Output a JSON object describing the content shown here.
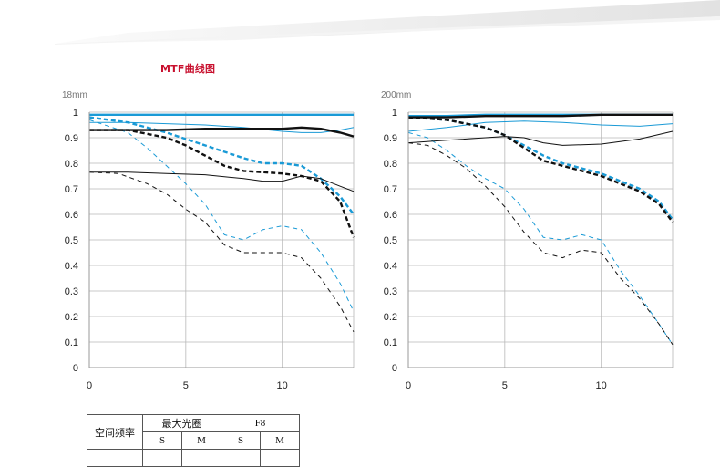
{
  "heading": "MTF曲线图",
  "colors": {
    "heading": "#c8102e",
    "blue": "#1a9ad6",
    "black": "#111111",
    "grid": "#b8b8b8"
  },
  "table": {
    "row_header": "空间频率",
    "group_max": "最大光圈",
    "group_f8": "F8",
    "s1": "S",
    "m1": "M",
    "s2": "S",
    "m2": "M"
  },
  "chart_data": [
    {
      "type": "line",
      "title": "18mm",
      "xlim": [
        0,
        13.7
      ],
      "ylim": [
        0,
        1
      ],
      "x_ticks": [
        0,
        5,
        10
      ],
      "y_ticks": [
        0,
        0.1,
        0.2,
        0.3,
        0.4,
        0.5,
        0.6,
        0.7,
        0.8,
        0.9,
        1
      ],
      "y_tick_labels": [
        "0",
        "0.1",
        "0.2",
        "0.3",
        "0.4",
        "0.5",
        "0.6",
        "0.7",
        "0.8",
        "0.9",
        "1"
      ],
      "x_tick_labels": [
        "0",
        "5",
        "10"
      ],
      "grid": true,
      "series": [
        {
          "name": "max-aperture-10lp-sagittal",
          "color": "#1a9ad6",
          "style": "solid",
          "weight": "bold",
          "x": [
            0,
            2,
            4,
            6,
            8,
            10,
            12,
            13.7
          ],
          "y": [
            0.99,
            0.99,
            0.99,
            0.99,
            0.99,
            0.99,
            0.99,
            0.99
          ]
        },
        {
          "name": "max-aperture-10lp-meridional",
          "color": "#1a9ad6",
          "style": "dashed",
          "weight": "bold",
          "x": [
            0,
            2,
            4,
            6,
            8,
            9,
            10,
            11,
            12,
            13,
            13.7
          ],
          "y": [
            0.98,
            0.96,
            0.92,
            0.87,
            0.82,
            0.8,
            0.8,
            0.79,
            0.74,
            0.67,
            0.6
          ]
        },
        {
          "name": "max-aperture-30lp-sagittal",
          "color": "#1a9ad6",
          "style": "solid",
          "weight": "thin",
          "x": [
            0,
            2,
            4,
            6,
            8,
            10,
            11,
            12,
            13,
            13.7
          ],
          "y": [
            0.96,
            0.96,
            0.955,
            0.95,
            0.94,
            0.925,
            0.92,
            0.92,
            0.93,
            0.94
          ]
        },
        {
          "name": "max-aperture-30lp-meridional",
          "color": "#1a9ad6",
          "style": "dashed",
          "weight": "thin",
          "x": [
            0,
            2,
            3,
            4,
            5,
            6,
            7,
            8,
            9,
            10,
            11,
            12,
            13,
            13.7
          ],
          "y": [
            0.97,
            0.92,
            0.86,
            0.79,
            0.72,
            0.64,
            0.52,
            0.5,
            0.54,
            0.555,
            0.54,
            0.45,
            0.33,
            0.22
          ]
        },
        {
          "name": "f8-10lp-sagittal",
          "color": "#111111",
          "style": "solid",
          "weight": "bold",
          "x": [
            0,
            2,
            4,
            6,
            8,
            10,
            11,
            12,
            13,
            13.7
          ],
          "y": [
            0.93,
            0.93,
            0.93,
            0.935,
            0.935,
            0.935,
            0.94,
            0.935,
            0.92,
            0.905
          ]
        },
        {
          "name": "f8-10lp-meridional",
          "color": "#111111",
          "style": "dashed",
          "weight": "bold",
          "x": [
            0,
            2,
            4,
            5,
            6,
            7,
            8,
            10,
            11,
            12,
            13,
            13.7
          ],
          "y": [
            0.93,
            0.93,
            0.9,
            0.87,
            0.83,
            0.79,
            0.77,
            0.76,
            0.75,
            0.73,
            0.65,
            0.51
          ]
        },
        {
          "name": "f8-30lp-sagittal",
          "color": "#111111",
          "style": "solid",
          "weight": "thin",
          "x": [
            0,
            2,
            4,
            6,
            8,
            9,
            10,
            11,
            12,
            13,
            13.7
          ],
          "y": [
            0.765,
            0.765,
            0.76,
            0.755,
            0.74,
            0.73,
            0.73,
            0.75,
            0.74,
            0.71,
            0.69
          ]
        },
        {
          "name": "f8-30lp-meridional",
          "color": "#111111",
          "style": "dashed",
          "weight": "thin",
          "x": [
            0,
            1.5,
            3,
            4,
            5,
            6,
            7,
            8,
            9,
            10,
            11,
            12,
            13,
            13.7
          ],
          "y": [
            0.765,
            0.76,
            0.72,
            0.68,
            0.62,
            0.57,
            0.48,
            0.45,
            0.45,
            0.45,
            0.43,
            0.35,
            0.24,
            0.14
          ]
        }
      ]
    },
    {
      "type": "line",
      "title": "200mm",
      "xlim": [
        0,
        13.7
      ],
      "ylim": [
        0,
        1
      ],
      "x_ticks": [
        0,
        5,
        10
      ],
      "y_ticks": [
        0,
        0.1,
        0.2,
        0.3,
        0.4,
        0.5,
        0.6,
        0.7,
        0.8,
        0.9,
        1
      ],
      "y_tick_labels": [
        "0",
        "0.1",
        "0.2",
        "0.3",
        "0.4",
        "0.5",
        "0.6",
        "0.7",
        "0.8",
        "0.9",
        "1"
      ],
      "x_tick_labels": [
        "0",
        "5",
        "10"
      ],
      "grid": true,
      "series": [
        {
          "name": "max-aperture-10lp-sagittal",
          "color": "#1a9ad6",
          "style": "solid",
          "weight": "bold",
          "x": [
            0,
            2,
            4,
            6,
            8,
            10,
            12,
            13.7
          ],
          "y": [
            0.985,
            0.985,
            0.99,
            0.99,
            0.99,
            0.99,
            0.99,
            0.99
          ]
        },
        {
          "name": "max-aperture-10lp-meridional",
          "color": "#1a9ad6",
          "style": "dashed",
          "weight": "bold",
          "x": [
            0,
            2,
            4,
            5,
            6,
            7,
            8,
            9,
            10,
            11,
            12,
            13,
            13.7
          ],
          "y": [
            0.98,
            0.97,
            0.94,
            0.91,
            0.87,
            0.83,
            0.8,
            0.78,
            0.76,
            0.73,
            0.7,
            0.65,
            0.58
          ]
        },
        {
          "name": "max-aperture-30lp-sagittal",
          "color": "#1a9ad6",
          "style": "solid",
          "weight": "thin",
          "x": [
            0,
            2,
            4,
            6,
            8,
            10,
            12,
            13.7
          ],
          "y": [
            0.925,
            0.94,
            0.96,
            0.965,
            0.96,
            0.95,
            0.945,
            0.955
          ]
        },
        {
          "name": "max-aperture-30lp-meridional",
          "color": "#1a9ad6",
          "style": "dashed",
          "weight": "thin",
          "x": [
            0,
            1,
            2,
            3,
            4,
            5,
            6,
            7,
            8,
            9,
            10,
            11,
            12,
            13,
            13.7
          ],
          "y": [
            0.92,
            0.9,
            0.85,
            0.79,
            0.74,
            0.7,
            0.62,
            0.51,
            0.5,
            0.52,
            0.5,
            0.38,
            0.28,
            0.17,
            0.09
          ]
        },
        {
          "name": "f8-10lp-sagittal",
          "color": "#111111",
          "style": "solid",
          "weight": "bold",
          "x": [
            0,
            2,
            4,
            6,
            8,
            10,
            12,
            13.7
          ],
          "y": [
            0.98,
            0.98,
            0.985,
            0.985,
            0.985,
            0.99,
            0.99,
            0.99
          ]
        },
        {
          "name": "f8-10lp-meridional",
          "color": "#111111",
          "style": "dashed",
          "weight": "bold",
          "x": [
            0,
            2,
            4,
            5,
            6,
            7,
            8,
            9,
            10,
            11,
            12,
            13,
            13.7
          ],
          "y": [
            0.98,
            0.97,
            0.94,
            0.91,
            0.86,
            0.81,
            0.79,
            0.77,
            0.75,
            0.72,
            0.69,
            0.64,
            0.57
          ]
        },
        {
          "name": "f8-30lp-sagittal",
          "color": "#111111",
          "style": "solid",
          "weight": "thin",
          "x": [
            0,
            2,
            4,
            5,
            6,
            7,
            8,
            10,
            12,
            13.7
          ],
          "y": [
            0.88,
            0.89,
            0.9,
            0.905,
            0.9,
            0.88,
            0.87,
            0.875,
            0.895,
            0.925
          ]
        },
        {
          "name": "f8-30lp-meridional",
          "color": "#111111",
          "style": "dashed",
          "weight": "thin",
          "x": [
            0,
            1,
            2,
            3,
            4,
            5,
            6,
            7,
            8,
            9,
            10,
            11,
            12,
            13,
            13.7
          ],
          "y": [
            0.88,
            0.87,
            0.83,
            0.78,
            0.71,
            0.63,
            0.53,
            0.45,
            0.43,
            0.46,
            0.45,
            0.35,
            0.27,
            0.17,
            0.09
          ]
        }
      ]
    }
  ]
}
